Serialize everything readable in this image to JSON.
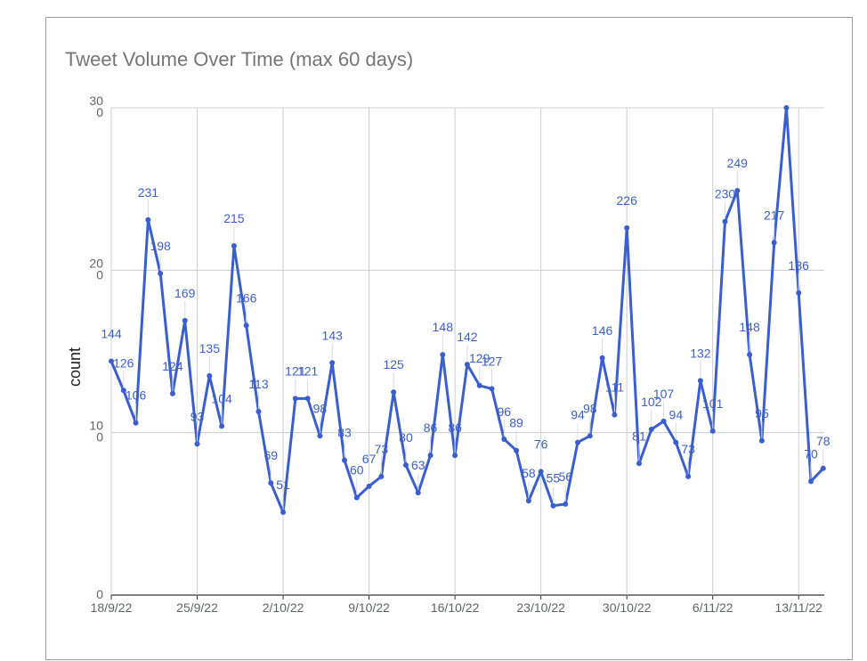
{
  "chart_data": {
    "type": "line",
    "title": "Tweet Volume Over Time (max 60 days)",
    "xlabel": "",
    "ylabel": "count",
    "ylim": [
      0,
      300
    ],
    "y_ticks": [
      "0",
      "100",
      "200",
      "300"
    ],
    "x_start": "2022-09-18",
    "x_ticks": [
      "18/9/22",
      "25/9/22",
      "2/10/22",
      "9/10/22",
      "16/10/22",
      "23/10/22",
      "30/10/22",
      "6/11/22",
      "13/11/22"
    ],
    "grid": true,
    "legend": "none",
    "color": "#3a5fcd",
    "values": [
      144,
      126,
      106,
      231,
      198,
      124,
      169,
      93,
      135,
      104,
      215,
      166,
      113,
      69,
      51,
      121,
      121,
      98,
      143,
      83,
      60,
      67,
      73,
      125,
      80,
      63,
      86,
      148,
      86,
      142,
      129,
      127,
      96,
      89,
      58,
      76,
      55,
      56,
      94,
      98,
      146,
      111,
      226,
      81,
      102,
      107,
      94,
      73,
      132,
      101,
      230,
      249,
      148,
      95,
      217,
      300,
      186,
      70,
      78
    ],
    "point_labels": [
      "144",
      "126",
      "106",
      "231",
      "198",
      "124",
      "169",
      "93",
      "135",
      "104",
      "215",
      "166",
      "113",
      "69",
      "51",
      "121",
      "121",
      "98",
      "143",
      "83",
      "60",
      "67",
      "73",
      "125",
      "80",
      "63",
      "86",
      "148",
      "86",
      "142",
      "129",
      "127",
      "96",
      "89",
      "58",
      "76",
      "55",
      "56",
      "94",
      "98",
      "146",
      "111",
      "226",
      "81",
      "102",
      "107",
      "94",
      "73",
      "132",
      "101",
      "230",
      "249",
      "148",
      "95",
      "217",
      "",
      "186",
      "70",
      "78"
    ]
  }
}
